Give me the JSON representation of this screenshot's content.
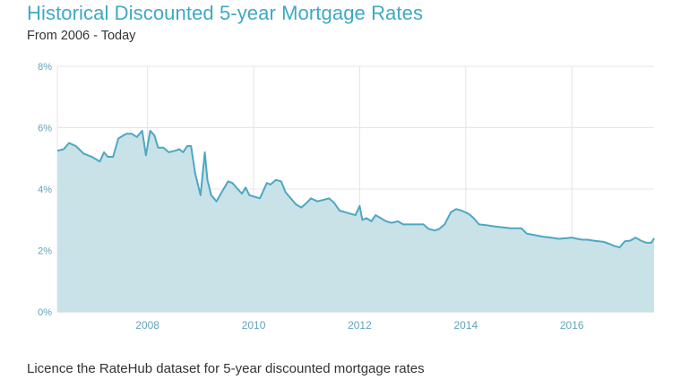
{
  "header": {
    "title": "Historical Discounted 5-year Mortgage Rates",
    "subtitle": "From 2006 - Today"
  },
  "footer": {
    "link_text": "Licence the RateHub dataset for 5-year discounted mortgage rates"
  },
  "colors": {
    "title": "#3ea9c4",
    "line": "#4ea7c3",
    "fill": "#c5e0e7",
    "grid": "#e4e4e4",
    "tick": "#5fa3bb"
  },
  "chart_data": {
    "type": "area",
    "title": "Historical Discounted 5-year Mortgage Rates",
    "subtitle": "From 2006 - Today",
    "xlabel": "",
    "ylabel": "",
    "xlim": [
      2006.3,
      2017.55
    ],
    "ylim": [
      0,
      8
    ],
    "y_ticks": [
      0,
      2,
      4,
      6,
      8
    ],
    "y_tick_labels": [
      "0%",
      "2%",
      "4%",
      "6%",
      "8%"
    ],
    "x_ticks": [
      2008,
      2010,
      2012,
      2014,
      2016
    ],
    "x_tick_labels": [
      "2008",
      "2010",
      "2012",
      "2014",
      "2016"
    ],
    "grid": true,
    "series": [
      {
        "x": [
          2006.3,
          2006.42,
          2006.52,
          2006.65,
          2006.8,
          2006.95,
          2007.1,
          2007.18,
          2007.25,
          2007.35,
          2007.45,
          2007.5,
          2007.6,
          2007.7,
          2007.8,
          2007.9,
          2007.97,
          2008.05,
          2008.13,
          2008.2,
          2008.3,
          2008.4,
          2008.52,
          2008.6,
          2008.67,
          2008.75,
          2008.82,
          2008.9,
          2009.0,
          2009.08,
          2009.13,
          2009.2,
          2009.3,
          2009.4,
          2009.52,
          2009.6,
          2009.7,
          2009.78,
          2009.85,
          2009.92,
          2010.02,
          2010.12,
          2010.25,
          2010.32,
          2010.42,
          2010.52,
          2010.6,
          2010.7,
          2010.8,
          2010.9,
          2011.0,
          2011.08,
          2011.2,
          2011.32,
          2011.42,
          2011.52,
          2011.62,
          2011.72,
          2011.82,
          2011.92,
          2012.0,
          2012.05,
          2012.13,
          2012.22,
          2012.3,
          2012.4,
          2012.5,
          2012.6,
          2012.72,
          2012.82,
          2012.9,
          2013.0,
          2013.1,
          2013.2,
          2013.3,
          2013.42,
          2013.5,
          2013.6,
          2013.72,
          2013.82,
          2013.92,
          2014.05,
          2014.15,
          2014.25,
          2014.4,
          2014.55,
          2014.7,
          2014.85,
          2014.95,
          2015.05,
          2015.15,
          2015.3,
          2015.45,
          2015.6,
          2015.75,
          2015.9,
          2016.0,
          2016.1,
          2016.2,
          2016.3,
          2016.4,
          2016.5,
          2016.6,
          2016.7,
          2016.8,
          2016.9,
          2017.0,
          2017.1,
          2017.2,
          2017.3,
          2017.4,
          2017.5,
          2017.55
        ],
        "values": [
          5.25,
          5.3,
          5.5,
          5.4,
          5.15,
          5.05,
          4.9,
          5.2,
          5.05,
          5.05,
          5.65,
          5.7,
          5.8,
          5.8,
          5.7,
          5.9,
          5.1,
          5.9,
          5.75,
          5.35,
          5.35,
          5.2,
          5.25,
          5.3,
          5.2,
          5.4,
          5.4,
          4.5,
          3.8,
          5.2,
          4.3,
          3.8,
          3.6,
          3.9,
          4.25,
          4.2,
          4.0,
          3.85,
          4.05,
          3.8,
          3.75,
          3.7,
          4.2,
          4.15,
          4.3,
          4.25,
          3.9,
          3.7,
          3.5,
          3.4,
          3.55,
          3.7,
          3.6,
          3.65,
          3.7,
          3.55,
          3.3,
          3.25,
          3.2,
          3.15,
          3.45,
          3.0,
          3.05,
          2.95,
          3.15,
          3.05,
          2.95,
          2.9,
          2.95,
          2.85,
          2.85,
          2.85,
          2.85,
          2.85,
          2.7,
          2.65,
          2.7,
          2.85,
          3.25,
          3.35,
          3.3,
          3.2,
          3.05,
          2.85,
          2.82,
          2.78,
          2.75,
          2.72,
          2.72,
          2.72,
          2.55,
          2.5,
          2.45,
          2.42,
          2.38,
          2.4,
          2.42,
          2.38,
          2.35,
          2.35,
          2.32,
          2.3,
          2.28,
          2.22,
          2.15,
          2.1,
          2.3,
          2.32,
          2.42,
          2.32,
          2.25,
          2.25,
          2.4
        ]
      }
    ]
  }
}
